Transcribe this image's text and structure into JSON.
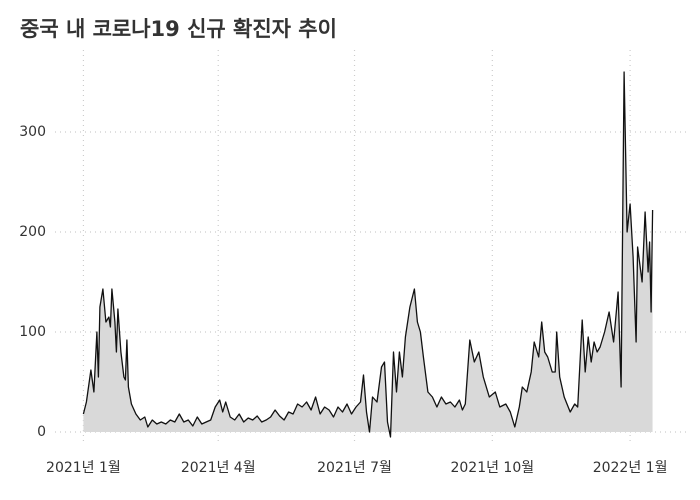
{
  "chart_data": {
    "type": "area",
    "title": "중국 내 코로나19 신규 확진자 추이",
    "x": [
      0,
      2,
      5,
      7,
      9,
      10,
      11,
      13,
      15,
      17,
      18,
      19,
      21,
      22,
      23,
      25,
      27,
      28,
      29,
      30,
      32,
      35,
      38,
      41,
      43,
      46,
      49,
      52,
      55,
      58,
      61,
      64,
      67,
      70,
      73,
      76,
      79,
      82,
      85,
      88,
      91,
      93,
      95,
      98,
      101,
      104,
      107,
      110,
      113,
      116,
      119,
      122,
      125,
      128,
      131,
      134,
      137,
      140,
      143,
      146,
      149,
      152,
      155,
      158,
      161,
      164,
      167,
      170,
      173,
      176,
      179,
      182,
      185,
      187,
      189,
      191,
      193,
      196,
      199,
      201,
      203,
      205,
      207,
      209,
      211,
      213,
      215,
      218,
      221,
      223,
      225,
      227,
      230,
      233,
      236,
      239,
      242,
      245,
      248,
      251,
      253,
      255,
      258,
      261,
      264,
      267,
      271,
      275,
      278,
      282,
      285,
      288,
      291,
      293,
      296,
      299,
      301,
      304,
      306,
      308,
      310,
      313,
      315,
      316,
      318,
      321,
      325,
      328,
      330,
      333,
      335,
      337,
      339,
      341,
      343,
      345,
      348,
      351,
      354,
      357,
      359,
      361,
      363,
      365,
      367,
      369,
      370,
      373,
      375,
      377,
      378,
      379,
      380
    ],
    "values": [
      18,
      30,
      62,
      40,
      100,
      55,
      125,
      143,
      110,
      115,
      105,
      143,
      110,
      80,
      123,
      80,
      55,
      52,
      92,
      45,
      28,
      18,
      12,
      15,
      5,
      12,
      8,
      10,
      8,
      12,
      10,
      18,
      10,
      12,
      6,
      15,
      8,
      10,
      12,
      25,
      32,
      20,
      30,
      15,
      12,
      18,
      10,
      14,
      12,
      16,
      10,
      12,
      15,
      22,
      16,
      12,
      20,
      18,
      28,
      25,
      30,
      22,
      35,
      18,
      25,
      22,
      15,
      25,
      20,
      28,
      18,
      25,
      30,
      57,
      20,
      0,
      35,
      30,
      65,
      70,
      10,
      -5,
      80,
      40,
      80,
      55,
      95,
      125,
      143,
      110,
      100,
      75,
      40,
      35,
      25,
      35,
      28,
      30,
      25,
      32,
      22,
      28,
      92,
      70,
      80,
      55,
      35,
      40,
      25,
      28,
      20,
      5,
      25,
      45,
      40,
      60,
      90,
      75,
      110,
      80,
      75,
      60,
      60,
      100,
      55,
      35,
      20,
      28,
      25,
      112,
      60,
      95,
      70,
      90,
      80,
      85,
      100,
      120,
      90,
      140,
      45,
      360,
      200,
      228,
      175,
      90,
      185,
      150,
      220,
      160,
      190,
      120,
      222
    ],
    "line_color": "#111111",
    "fill_color": "#d9d9d9",
    "xlim": [
      -29,
      405
    ],
    "ylim": [
      -23,
      382
    ],
    "xticks": [
      {
        "value": 0,
        "label": "2021년 1월"
      },
      {
        "value": 90,
        "label": "2021년 4월"
      },
      {
        "value": 181,
        "label": "2021년 7월"
      },
      {
        "value": 273,
        "label": "2021년 10월"
      },
      {
        "value": 365,
        "label": "2022년 1월"
      }
    ],
    "yticks": [
      0,
      100,
      200,
      300
    ],
    "grid": true
  }
}
